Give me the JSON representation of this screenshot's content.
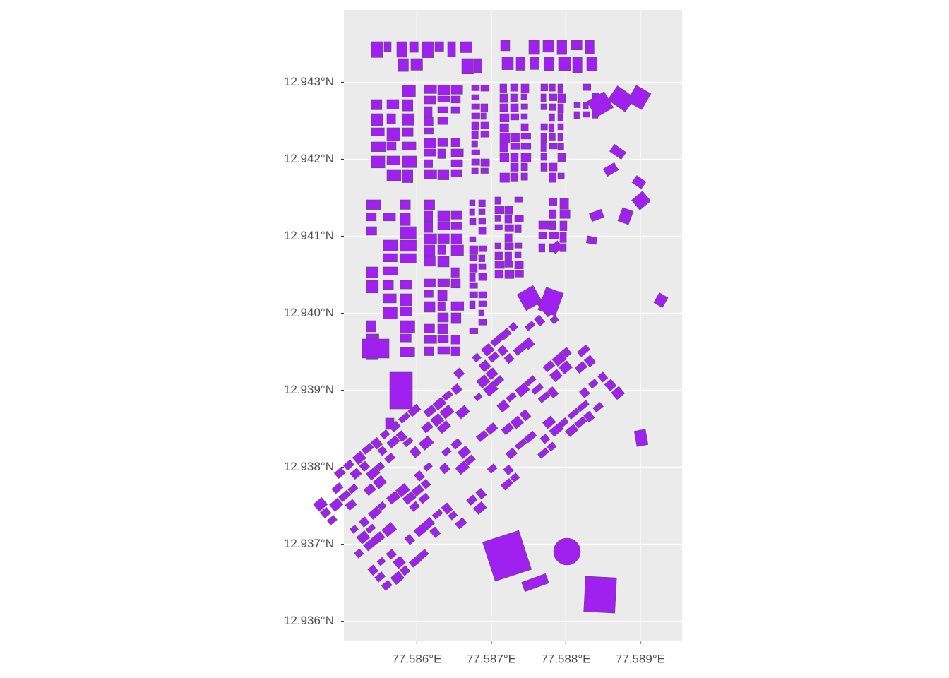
{
  "chart_data": {
    "type": "map",
    "xlim": [
      77.58502,
      77.58956
    ],
    "ylim": [
      12.93574,
      12.94394
    ],
    "xticks": [
      {
        "value": 77.586,
        "label": "77.586°E"
      },
      {
        "value": 77.587,
        "label": "77.587°E"
      },
      {
        "value": 77.588,
        "label": "77.588°E"
      },
      {
        "value": 77.589,
        "label": "77.589°E"
      }
    ],
    "yticks": [
      {
        "value": 12.936,
        "label": "12.936°N"
      },
      {
        "value": 12.937,
        "label": "12.937°N"
      },
      {
        "value": 12.938,
        "label": "12.938°N"
      },
      {
        "value": 12.939,
        "label": "12.939°N"
      },
      {
        "value": 12.94,
        "label": "12.940°N"
      },
      {
        "value": 12.941,
        "label": "12.941°N"
      },
      {
        "value": 12.942,
        "label": "12.942°N"
      },
      {
        "value": 12.943,
        "label": "12.943°N"
      }
    ],
    "grid": true,
    "color": "#A020F0"
  }
}
